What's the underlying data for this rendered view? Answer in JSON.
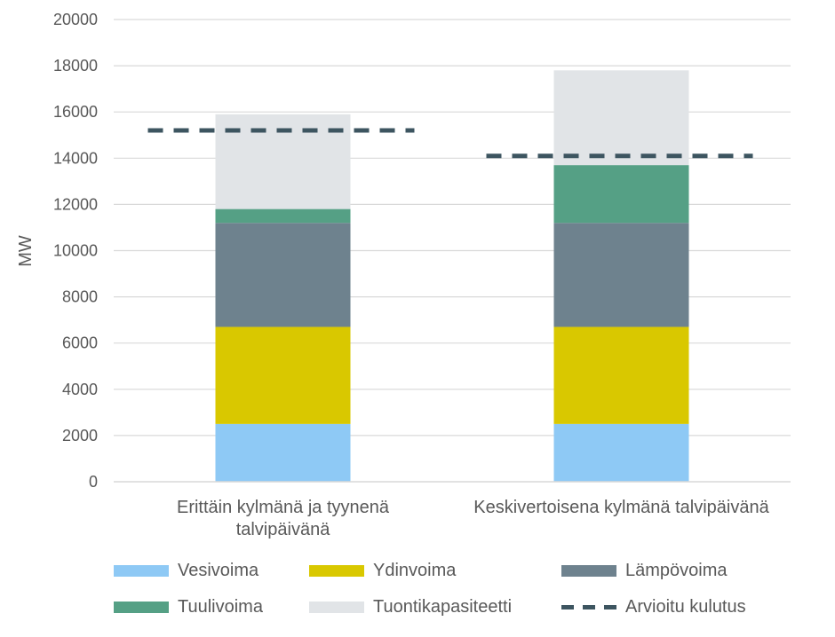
{
  "chart_data": {
    "type": "bar",
    "stacked": true,
    "categories": [
      [
        "Erittäin kylmänä ja tyynenä",
        "talvipäivänä"
      ],
      [
        "Keskivertoisena kylmänä talvipäivänä"
      ]
    ],
    "ylabel": "MW",
    "ylim": [
      0,
      20000
    ],
    "yticks": [
      "0",
      "2000",
      "4000",
      "6000",
      "8000",
      "10000",
      "12000",
      "14000",
      "16000",
      "18000",
      "20000"
    ],
    "grid": true,
    "legend_position": "bottom",
    "series": [
      {
        "name": "Vesivoima",
        "color": "#8ec9f5",
        "values": [
          2500,
          2500
        ]
      },
      {
        "name": "Ydinvoima",
        "color": "#d9c800",
        "values": [
          4200,
          4200
        ]
      },
      {
        "name": "Lämpövoima",
        "color": "#6e828e",
        "values": [
          4500,
          4500
        ]
      },
      {
        "name": "Tuulivoima",
        "color": "#55a085",
        "values": [
          600,
          2500
        ]
      },
      {
        "name": "Tuontikapasiteetti",
        "color": "#e1e4e7",
        "values": [
          4100,
          4100
        ]
      }
    ],
    "line_series": {
      "name": "Arvioitu kulutus",
      "color": "#3d5560",
      "style": "dashed",
      "values": [
        15200,
        14100
      ]
    }
  }
}
